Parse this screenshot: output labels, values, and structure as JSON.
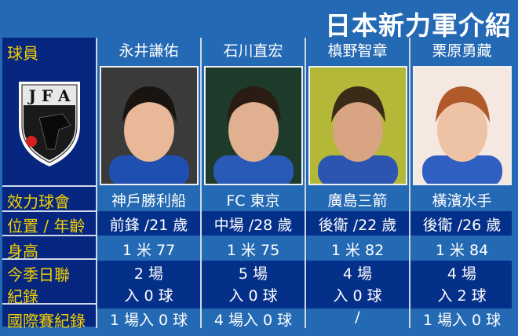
{
  "title": "日本新力軍介紹",
  "labels": {
    "player": "球員",
    "club": "效力球會",
    "position_age": "位置 / 年齡",
    "height": "身高",
    "season_line1": "今季日聯",
    "season_line2": "紀錄",
    "international": "國際賽紀錄"
  },
  "logo_text": "JFA",
  "players": [
    {
      "name": "永井謙佑",
      "club": "神戶勝利船",
      "position_age": "前鋒 /21 歲",
      "height": "1 米 77",
      "apps": "2 場",
      "goals": "入 0 球",
      "international": "1 場入 0 球",
      "jersey": "#1f4fb0"
    },
    {
      "name": "石川直宏",
      "club": "FC 東京",
      "position_age": "中場 /28 歲",
      "height": "1 米 75",
      "apps": "5 場",
      "goals": "入 0 球",
      "international": "4 場入 0 球",
      "jersey": "#2a5ab8"
    },
    {
      "name": "槙野智章",
      "club": "廣島三箭",
      "position_age": "後衛 /22 歲",
      "height": "1 米 82",
      "apps": "4 場",
      "goals": "入 0 球",
      "international": "/",
      "jersey": "#2b55b0"
    },
    {
      "name": "栗原勇藏",
      "club": "橫濱水手",
      "position_age": "後衛 /26 歲",
      "height": "1 米 84",
      "apps": "4 場",
      "goals": "入 2 球",
      "international": "1 場入 0 球",
      "jersey": "#2f5fc0"
    }
  ]
}
